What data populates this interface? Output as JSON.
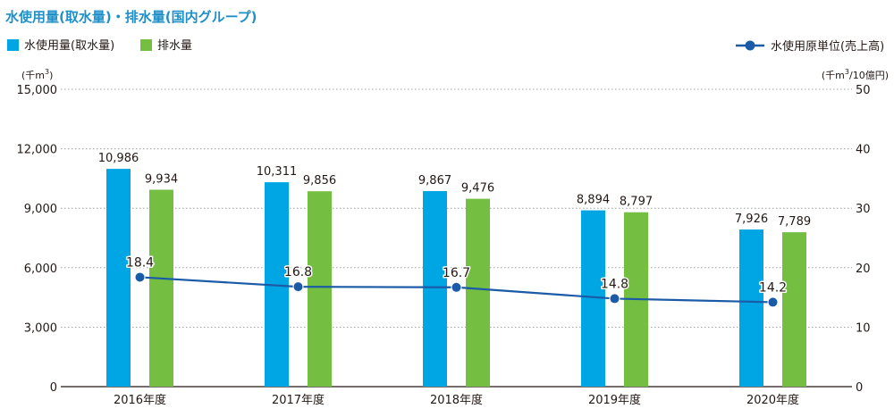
{
  "title": "水使用量(取水量)・排水量(国内グループ)",
  "legend": {
    "intake_label": "水使用量(取水量)",
    "discharge_label": "排水量",
    "line_label": "水使用原単位(売上高)"
  },
  "axis": {
    "left_unit_prefix": "(千m",
    "left_unit_sup": "3",
    "left_unit_suffix": ")",
    "right_unit_prefix": "(千m",
    "right_unit_sup": "3",
    "right_unit_suffix": "/10億円)",
    "left_ticks": [
      "15,000",
      "12,000",
      "9,000",
      "6,000",
      "3,000",
      "0"
    ],
    "right_ticks": [
      "50",
      "40",
      "30",
      "20",
      "10",
      "0"
    ]
  },
  "colors": {
    "title": "#1f8fc8",
    "intake": "#00a5e3",
    "discharge": "#74be42",
    "line": "#1b5aa6",
    "grid": "#9fa0a0"
  },
  "chart_data": {
    "type": "bar",
    "categories": [
      "2016年度",
      "2017年度",
      "2018年度",
      "2019年度",
      "2020年度"
    ],
    "series": [
      {
        "name": "水使用量(取水量)",
        "type": "bar",
        "axis": "left",
        "values": [
          10986,
          10311,
          9867,
          8894,
          7926
        ],
        "labels": [
          "10,986",
          "10,311",
          "9,867",
          "8,894",
          "7,926"
        ]
      },
      {
        "name": "排水量",
        "type": "bar",
        "axis": "left",
        "values": [
          9934,
          9856,
          9476,
          8797,
          7789
        ],
        "labels": [
          "9,934",
          "9,856",
          "9,476",
          "8,797",
          "7,789"
        ]
      },
      {
        "name": "水使用原単位(売上高)",
        "type": "line",
        "axis": "right",
        "values": [
          18.4,
          16.8,
          16.7,
          14.8,
          14.2
        ],
        "labels": [
          "18.4",
          "16.8",
          "16.7",
          "14.8",
          "14.2"
        ]
      }
    ],
    "ylim_left": [
      0,
      15000
    ],
    "ylim_right": [
      0,
      50
    ],
    "grid": true,
    "legend_position": "top"
  }
}
